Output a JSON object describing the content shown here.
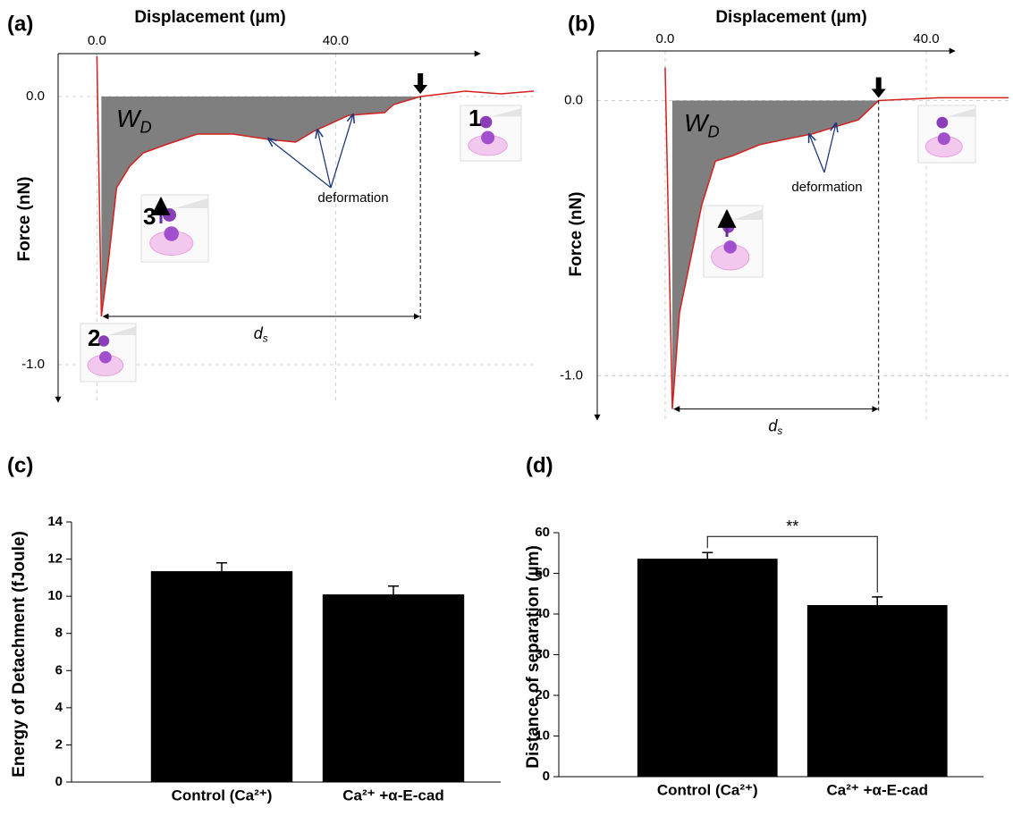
{
  "chart_data": [
    {
      "type": "line",
      "panel": "(a)",
      "xlabel": "Displacement (µm)",
      "ylabel": "Force (nN)",
      "x": [
        0,
        0.75,
        1.8,
        3.3,
        5.5,
        7.8,
        11.5,
        16.8,
        22.8,
        28.8,
        33.3,
        36.3,
        42.2,
        48.2,
        49.7,
        54.2,
        61.7,
        67.7,
        73.2
      ],
      "series": [
        {
          "color": "#d62020",
          "values": [
            0.15,
            -0.82,
            -0.64,
            -0.34,
            -0.26,
            -0.21,
            -0.18,
            -0.14,
            -0.14,
            -0.16,
            -0.17,
            -0.13,
            -0.07,
            -0.06,
            -0.03,
            0,
            0.02,
            0.01,
            0.02
          ]
        }
      ],
      "xlim": [
        -6.5,
        73.2
      ],
      "ylim": [
        -1.14,
        0.16
      ],
      "xticks": [
        {
          "value": 0,
          "label": "0.0"
        },
        {
          "value": 40,
          "label": "40.0"
        }
      ],
      "yticks": [
        {
          "value": 0,
          "label": "0.0"
        },
        {
          "value": -1,
          "label": "-1.0"
        }
      ],
      "grid": true,
      "fill_color": "#7f7f7f",
      "annotations": {
        "work": {
          "main": "W",
          "sub": "D"
        },
        "deformation": "deformation",
        "separation": {
          "main": "d",
          "sub": "s"
        },
        "steps": [
          "1",
          "2",
          "3"
        ]
      }
    },
    {
      "type": "line",
      "panel": "(b)",
      "xlabel": "Displacement (µm)",
      "ylabel": "Force (nN)",
      "x": [
        0,
        1.1,
        2.2,
        3.6,
        5.6,
        7.7,
        10.4,
        14.5,
        18.6,
        22.7,
        26.8,
        29.6,
        32.7,
        41.9,
        52.6
      ],
      "series": [
        {
          "color": "#d62020",
          "values": [
            0.12,
            -1.12,
            -0.77,
            -0.61,
            -0.38,
            -0.22,
            -0.2,
            -0.16,
            -0.14,
            -0.12,
            -0.09,
            -0.07,
            0,
            0.01,
            0.01
          ]
        }
      ],
      "xlim": [
        -10.4,
        52.6
      ],
      "ylim": [
        -1.16,
        0.18
      ],
      "xticks": [
        {
          "value": 0,
          "label": "0.0"
        },
        {
          "value": 40,
          "label": "40.0"
        }
      ],
      "yticks": [
        {
          "value": 0,
          "label": "0.0"
        },
        {
          "value": -1,
          "label": "-1.0"
        }
      ],
      "grid": true,
      "fill_color": "#7f7f7f",
      "annotations": {
        "work": {
          "main": "W",
          "sub": "D"
        },
        "deformation": "deformation",
        "separation": {
          "main": "d",
          "sub": "s"
        }
      }
    },
    {
      "type": "bar",
      "panel": "(c)",
      "ylabel": "Energy of Detachment (fJoule)",
      "categories": [
        "Control (Ca²⁺)",
        "Ca²⁺ +α-E-cad"
      ],
      "values": [
        11.35,
        10.1
      ],
      "errors": [
        0.45,
        0.45
      ],
      "color": "#000000",
      "ylim": [
        0,
        14
      ],
      "yticks": [
        0,
        2,
        4,
        6,
        8,
        10,
        12,
        14
      ]
    },
    {
      "type": "bar",
      "panel": "(d)",
      "ylabel": "Distance of separation (µm)",
      "categories": [
        "Control (Ca²⁺)",
        "Ca²⁺ +α-E-cad"
      ],
      "values": [
        53.6,
        42.2
      ],
      "errors": [
        1.5,
        2.0
      ],
      "color": "#000000",
      "ylim": [
        0,
        60
      ],
      "yticks": [
        0,
        10,
        20,
        30,
        40,
        50,
        60
      ],
      "significance": "**"
    }
  ]
}
